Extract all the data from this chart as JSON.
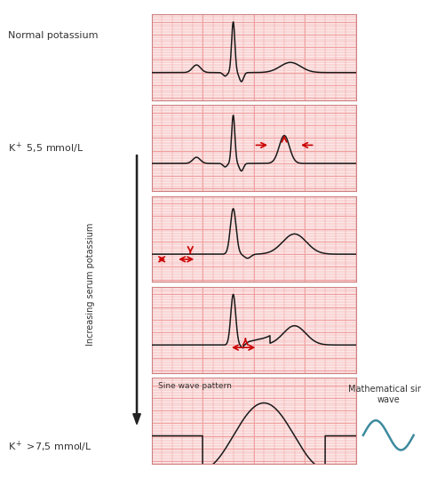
{
  "bg_color": "#ffffff",
  "grid_color": "#f0a0a0",
  "ecg_color": "#1a1a1a",
  "arrow_color": "#cc0000",
  "panel_bg": "#fce8e8",
  "panel_border": "#d08080",
  "sine_color": "#3d8a9e",
  "label_color": "#333333",
  "panel_labels": [
    "",
    "",
    "",
    "",
    "Sine wave pattern"
  ],
  "left_label_normal": "Normal potassium",
  "left_label_k55": "K⁺ 5,5 mmol/L",
  "left_label_k75": "K⁺ >7,5 mmol/L",
  "side_label": "Increasing serum potassium",
  "sine_title1": "Mathematical sine",
  "sine_title2": "wave"
}
